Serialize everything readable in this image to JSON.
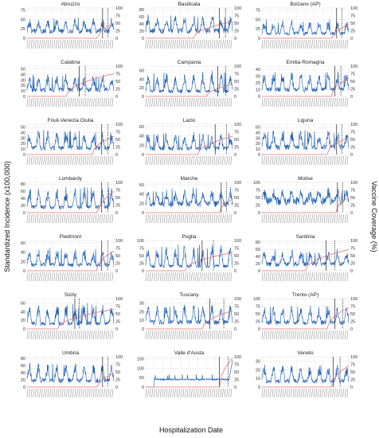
{
  "labels": {
    "ylabel_left": "Standardized Incidence (x100,000)",
    "ylabel_right": "Vaccine Coverage (%)",
    "xlabel": "Hospitalization Date"
  },
  "colors": {
    "incidence": "#1f5fb4",
    "coverage": "#e8787a",
    "marker": "#222222",
    "grid": "#e6e6e6",
    "panel_background": "#ffffff"
  },
  "chart_data": {
    "type": "line",
    "layout": "small-multiples 7x3",
    "series_encoding": "blue line = standardized incidence (left axis); red line = vaccine coverage % (right axis); solid vertical line and dashed vertical line = reference dates",
    "panels": [
      {
        "title": "Abruzzo",
        "yticks": [
          0,
          25,
          50,
          75
        ],
        "ylim": [
          0,
          80
        ],
        "ytick2": [
          0,
          25,
          50,
          75,
          100
        ],
        "ylim2": [
          0,
          100
        ],
        "base": 22,
        "peak": 55,
        "cov_start": 0.82,
        "cov_end": 50,
        "solid": 0.87,
        "dashed": 0.93
      },
      {
        "title": "Basilicata",
        "yticks": [
          0,
          20,
          40,
          60,
          80
        ],
        "ylim": [
          0,
          85
        ],
        "ytick2": [
          0,
          25,
          50,
          75,
          100
        ],
        "ylim2": [
          0,
          100
        ],
        "base": 25,
        "peak": 70,
        "cov_start": 0.55,
        "cov_end": 55,
        "solid": 0.85,
        "dashed": 0.92
      },
      {
        "title": "Bolzano (AP)",
        "yticks": [
          0,
          25,
          50,
          75
        ],
        "ylim": [
          0,
          80
        ],
        "ytick2": [
          0,
          25,
          50,
          75,
          100
        ],
        "ylim2": [
          0,
          100
        ],
        "base": 15,
        "peak": 50,
        "cov_start": 0.82,
        "cov_end": 45,
        "solid": 0.86,
        "dashed": 0.92
      },
      {
        "title": "Calabria",
        "yticks": [
          0,
          10,
          20,
          30,
          40,
          50
        ],
        "ylim": [
          0,
          55
        ],
        "ytick2": [
          0,
          25,
          50,
          75,
          100
        ],
        "ylim2": [
          0,
          100
        ],
        "base": 14,
        "peak": 42,
        "cov_start": 0.45,
        "cov_end": 75,
        "solid": 0.6,
        "dashed": 0.67
      },
      {
        "title": "Campania",
        "yticks": [
          0,
          20,
          40,
          60
        ],
        "ylim": [
          0,
          70
        ],
        "ytick2": [
          0,
          25,
          50,
          75,
          100
        ],
        "ylim2": [
          0,
          100
        ],
        "base": 14,
        "peak": 60,
        "cov_start": 0.7,
        "cov_end": 40,
        "solid": 0.83,
        "dashed": 0.92
      },
      {
        "title": "Emilia-Romagna",
        "yticks": [
          0,
          10,
          20,
          30,
          40
        ],
        "ylim": [
          0,
          45
        ],
        "ytick2": [
          0,
          25,
          50,
          75,
          100
        ],
        "ylim2": [
          0,
          100
        ],
        "base": 12,
        "peak": 38,
        "cov_start": 0.8,
        "cov_end": 60,
        "solid": 0.84,
        "dashed": 0.91
      },
      {
        "title": "Friuli-Venezia Giulia",
        "yticks": [
          0,
          10,
          20,
          30,
          40,
          50
        ],
        "ylim": [
          0,
          55
        ],
        "ytick2": [
          0,
          25,
          50,
          75,
          100
        ],
        "ylim2": [
          0,
          100
        ],
        "base": 14,
        "peak": 45,
        "cov_start": 0.75,
        "cov_end": 60,
        "solid": 0.86,
        "dashed": 0.93
      },
      {
        "title": "Lazio",
        "yticks": [
          0,
          20,
          40,
          60
        ],
        "ylim": [
          0,
          65
        ],
        "ytick2": [
          0,
          25,
          50,
          75,
          100
        ],
        "ylim2": [
          0,
          100
        ],
        "base": 15,
        "peak": 50,
        "cov_start": 0.6,
        "cov_end": 60,
        "solid": 0.8,
        "dashed": 0.93
      },
      {
        "title": "Liguria",
        "yticks": [
          0,
          10,
          20,
          30,
          40,
          50
        ],
        "ylim": [
          0,
          55
        ],
        "ytick2": [
          0,
          25,
          50,
          75,
          100
        ],
        "ylim2": [
          0,
          100
        ],
        "base": 16,
        "peak": 45,
        "cov_start": 0.75,
        "cov_end": 55,
        "solid": 0.86,
        "dashed": 0.92
      },
      {
        "title": "Lombardy",
        "yticks": [
          0,
          20,
          40,
          60,
          80
        ],
        "ylim": [
          0,
          85
        ],
        "ytick2": [
          0,
          25,
          50,
          75,
          100
        ],
        "ylim2": [
          0,
          100
        ],
        "base": 18,
        "peak": 75,
        "cov_start": 0.82,
        "cov_end": 70,
        "solid": 0.86,
        "dashed": 0.93
      },
      {
        "title": "Marche",
        "yticks": [
          0,
          20,
          40,
          60
        ],
        "ylim": [
          0,
          65
        ],
        "ytick2": [
          0,
          25,
          50,
          75,
          100
        ],
        "ylim2": [
          0,
          100
        ],
        "base": 22,
        "peak": 55,
        "cov_start": 0.85,
        "cov_end": 45,
        "solid": 0.87,
        "dashed": 0.93
      },
      {
        "title": "Molise",
        "yticks": [
          0,
          25,
          50,
          75,
          100
        ],
        "ylim": [
          0,
          100
        ],
        "ytick2": [
          0,
          25,
          50,
          75,
          100
        ],
        "ylim2": [
          0,
          100
        ],
        "base": 45,
        "peak": 85,
        "cov_start": 0.85,
        "cov_end": 50,
        "solid": 0.87,
        "dashed": 0.93
      },
      {
        "title": "Piedmont",
        "yticks": [
          0,
          20,
          40,
          60
        ],
        "ylim": [
          0,
          65
        ],
        "ytick2": [
          0,
          25,
          50,
          75,
          100
        ],
        "ylim2": [
          0,
          100
        ],
        "base": 15,
        "peak": 50,
        "cov_start": 0.8,
        "cov_end": 65,
        "solid": 0.86,
        "dashed": 0.93
      },
      {
        "title": "Puglia",
        "yticks": [
          0,
          25,
          50,
          75,
          100
        ],
        "ylim": [
          0,
          100
        ],
        "ytick2": [
          0,
          25,
          50,
          75,
          100
        ],
        "ylim2": [
          0,
          100
        ],
        "base": 18,
        "peak": 90,
        "cov_start": 0.45,
        "cov_end": 60,
        "solid": 0.65,
        "dashed": 0.78
      },
      {
        "title": "Sardinia",
        "yticks": [
          0,
          20,
          40,
          60,
          80
        ],
        "ylim": [
          0,
          85
        ],
        "ytick2": [
          0,
          25,
          50,
          75,
          100
        ],
        "ylim2": [
          0,
          100
        ],
        "base": 22,
        "peak": 60,
        "cov_start": 0.5,
        "cov_end": 70,
        "solid": 0.74,
        "dashed": 0.84
      },
      {
        "title": "Sicily",
        "yticks": [
          0,
          20,
          40,
          60
        ],
        "ylim": [
          0,
          70
        ],
        "ytick2": [
          0,
          25,
          50,
          75,
          100
        ],
        "ylim2": [
          0,
          100
        ],
        "base": 15,
        "peak": 60,
        "cov_start": 0.35,
        "cov_end": 65,
        "solid": 0.55,
        "dashed": 0.6
      },
      {
        "title": "Tuscany",
        "yticks": [
          0,
          10,
          20,
          30
        ],
        "ylim": [
          0,
          35
        ],
        "ytick2": [
          0,
          25,
          50,
          75,
          100
        ],
        "ylim2": [
          0,
          100
        ],
        "base": 9,
        "peak": 30,
        "cov_start": 0.65,
        "cov_end": 60,
        "solid": 0.74,
        "dashed": 0.9
      },
      {
        "title": "Trento (AP)",
        "yticks": [
          0,
          25,
          50,
          75,
          100
        ],
        "ylim": [
          0,
          100
        ],
        "ytick2": [
          0,
          25,
          50,
          75,
          100
        ],
        "ylim2": [
          0,
          100
        ],
        "base": 25,
        "peak": 80,
        "cov_start": 0.75,
        "cov_end": 70,
        "solid": 0.84,
        "dashed": 0.93
      },
      {
        "title": "Umbria",
        "yticks": [
          0,
          20,
          40,
          60,
          80
        ],
        "ylim": [
          0,
          85
        ],
        "ytick2": [
          0,
          25,
          50,
          75,
          100
        ],
        "ylim2": [
          0,
          100
        ],
        "base": 22,
        "peak": 70,
        "cov_start": 0.82,
        "cov_end": 45,
        "solid": 0.87,
        "dashed": 0.93
      },
      {
        "title": "Valle d'Aosta",
        "yticks": [
          0,
          50,
          100,
          150
        ],
        "ylim": [
          0,
          160
        ],
        "ytick2": [
          0,
          25,
          50,
          75,
          100
        ],
        "ylim2": [
          0,
          100
        ],
        "base": 40,
        "peak": 60,
        "cov_start": 0.85,
        "cov_end": 95,
        "solid": 0.85,
        "dashed": 0.95
      },
      {
        "title": "Veneto",
        "yticks": [
          0,
          10,
          20,
          30
        ],
        "ylim": [
          0,
          35
        ],
        "ytick2": [
          0,
          25,
          50,
          75,
          100
        ],
        "ylim2": [
          0,
          100
        ],
        "base": 8,
        "peak": 28,
        "cov_start": 0.8,
        "cov_end": 70,
        "solid": 0.82,
        "dashed": 0.9
      }
    ]
  }
}
